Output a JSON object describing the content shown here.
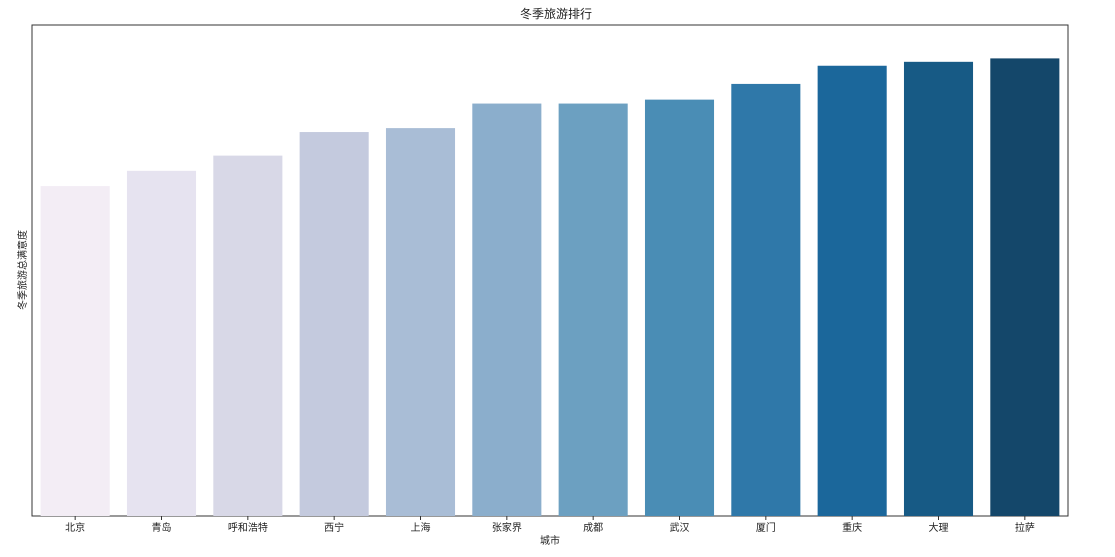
{
  "chart_data": {
    "type": "bar",
    "title": "冬季旅游排行",
    "xlabel": "城市",
    "ylabel": "冬季旅游总满意度",
    "categories": [
      "北京",
      "青岛",
      "呼和浩特",
      "西宁",
      "上海",
      "张家界",
      "成都",
      "武汉",
      "厦门",
      "重庆",
      "大理",
      "拉萨"
    ],
    "values": [
      0.672,
      0.703,
      0.734,
      0.782,
      0.79,
      0.84,
      0.84,
      0.848,
      0.88,
      0.917,
      0.925,
      0.932
    ],
    "ylim": [
      0,
      1
    ],
    "grid": false,
    "legend": "none",
    "colors": [
      "#f3edf5",
      "#e6e3f0",
      "#d8d8e7",
      "#c4cade",
      "#a9bdd6",
      "#8baecc",
      "#6ca0c1",
      "#4a8db5",
      "#2f78a9",
      "#1b679b",
      "#175a85",
      "#14476a"
    ]
  }
}
